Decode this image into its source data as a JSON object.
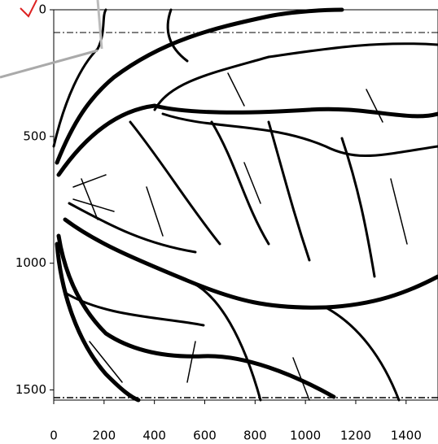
{
  "chart_data": {
    "type": "image",
    "xlim": [
      0,
      1530
    ],
    "ylim": [
      1540,
      0
    ],
    "xticks": [
      0,
      200,
      400,
      600,
      800,
      1000,
      1200,
      1400
    ],
    "yticks": [
      0,
      500,
      1000,
      1500
    ]
  }
}
